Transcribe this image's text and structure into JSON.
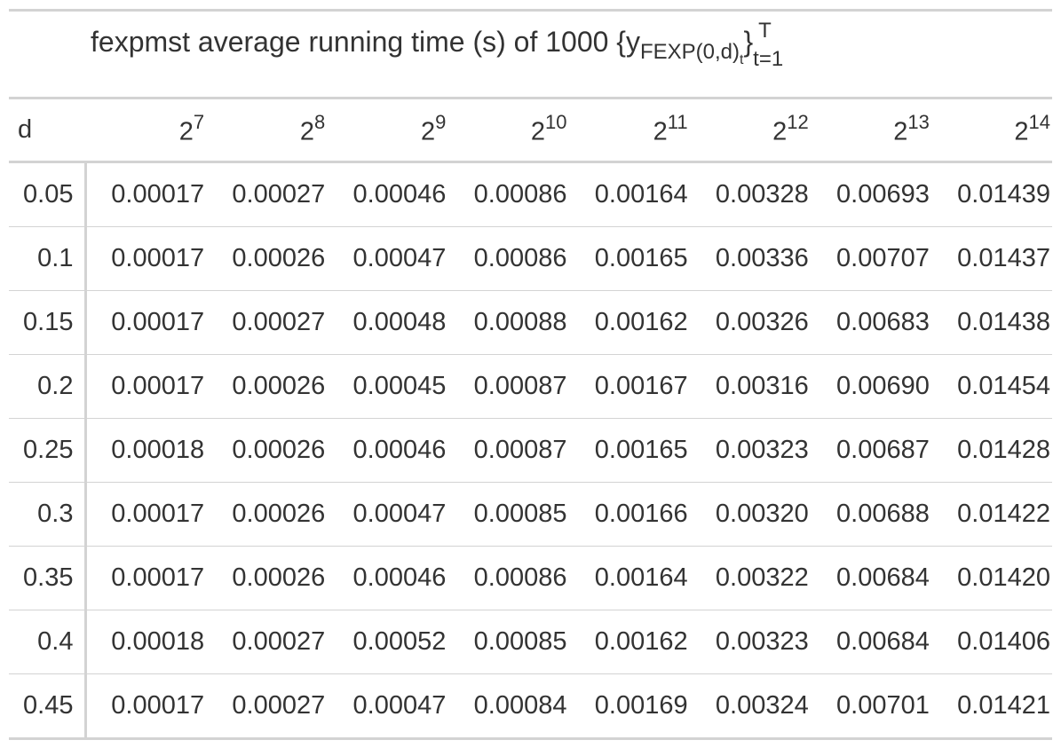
{
  "title": {
    "main": "fexpmst average running time (s) of 1000 {y",
    "sub": "FEXP(0,d)",
    "sub2": "t",
    "close": "}",
    "sup": "T",
    "lower": "t=1"
  },
  "table": {
    "stub_header": "d",
    "columns": [
      {
        "base": "2",
        "exp": "7"
      },
      {
        "base": "2",
        "exp": "8"
      },
      {
        "base": "2",
        "exp": "9"
      },
      {
        "base": "2",
        "exp": "10"
      },
      {
        "base": "2",
        "exp": "11"
      },
      {
        "base": "2",
        "exp": "12"
      },
      {
        "base": "2",
        "exp": "13"
      },
      {
        "base": "2",
        "exp": "14"
      }
    ],
    "rows": [
      {
        "d": "0.05",
        "values": [
          "0.00017",
          "0.00027",
          "0.00046",
          "0.00086",
          "0.00164",
          "0.00328",
          "0.00693",
          "0.01439"
        ]
      },
      {
        "d": "0.1",
        "values": [
          "0.00017",
          "0.00026",
          "0.00047",
          "0.00086",
          "0.00165",
          "0.00336",
          "0.00707",
          "0.01437"
        ]
      },
      {
        "d": "0.15",
        "values": [
          "0.00017",
          "0.00027",
          "0.00048",
          "0.00088",
          "0.00162",
          "0.00326",
          "0.00683",
          "0.01438"
        ]
      },
      {
        "d": "0.2",
        "values": [
          "0.00017",
          "0.00026",
          "0.00045",
          "0.00087",
          "0.00167",
          "0.00316",
          "0.00690",
          "0.01454"
        ]
      },
      {
        "d": "0.25",
        "values": [
          "0.00018",
          "0.00026",
          "0.00046",
          "0.00087",
          "0.00165",
          "0.00323",
          "0.00687",
          "0.01428"
        ]
      },
      {
        "d": "0.3",
        "values": [
          "0.00017",
          "0.00026",
          "0.00047",
          "0.00085",
          "0.00166",
          "0.00320",
          "0.00688",
          "0.01422"
        ]
      },
      {
        "d": "0.35",
        "values": [
          "0.00017",
          "0.00026",
          "0.00046",
          "0.00086",
          "0.00164",
          "0.00322",
          "0.00684",
          "0.01420"
        ]
      },
      {
        "d": "0.4",
        "values": [
          "0.00018",
          "0.00027",
          "0.00052",
          "0.00085",
          "0.00162",
          "0.00323",
          "0.00684",
          "0.01406"
        ]
      },
      {
        "d": "0.45",
        "values": [
          "0.00017",
          "0.00027",
          "0.00047",
          "0.00084",
          "0.00169",
          "0.00324",
          "0.00701",
          "0.01421"
        ]
      }
    ]
  }
}
